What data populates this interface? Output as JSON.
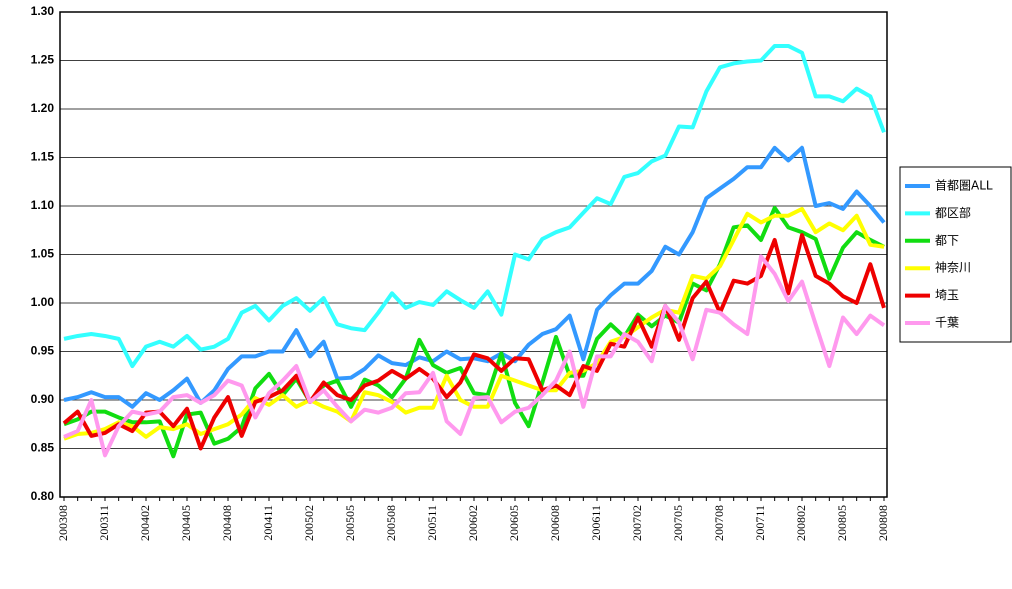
{
  "chart_data": {
    "type": "line",
    "categories": [
      "200308",
      null,
      null,
      "200311",
      null,
      null,
      "200402",
      null,
      null,
      "200405",
      null,
      null,
      "200408",
      null,
      null,
      "200411",
      null,
      null,
      "200502",
      null,
      null,
      "200505",
      null,
      null,
      "200508",
      null,
      null,
      "200511",
      null,
      null,
      "200602",
      null,
      null,
      "200605",
      null,
      null,
      "200608",
      null,
      null,
      "200611",
      null,
      null,
      "200702",
      null,
      null,
      "200705",
      null,
      null,
      "200708",
      null,
      null,
      "200711",
      null,
      null,
      "200802",
      null,
      null,
      "200805",
      null,
      null,
      "200808"
    ],
    "ylim": [
      0.8,
      1.3
    ],
    "yticks": [
      {
        "value": 0.8,
        "label": "0.80"
      },
      {
        "value": 0.85,
        "label": "0.85"
      },
      {
        "value": 0.9,
        "label": "0.90"
      },
      {
        "value": 0.95,
        "label": "0.95"
      },
      {
        "value": 1.0,
        "label": "1.00"
      },
      {
        "value": 1.05,
        "label": "1.05"
      },
      {
        "value": 1.1,
        "label": "1.10"
      },
      {
        "value": 1.15,
        "label": "1.15"
      },
      {
        "value": 1.2,
        "label": "1.20"
      },
      {
        "value": 1.25,
        "label": "1.25"
      },
      {
        "value": 1.3,
        "label": "1.30"
      }
    ],
    "grid": true,
    "legend": "right",
    "series": [
      {
        "name": "首都圏ALL",
        "color": "#3399ff",
        "values": [
          0.9,
          0.903,
          0.908,
          0.903,
          0.903,
          0.893,
          0.907,
          0.9,
          0.91,
          0.922,
          0.897,
          0.91,
          0.932,
          0.945,
          0.945,
          0.95,
          0.95,
          0.972,
          0.945,
          0.96,
          0.922,
          0.923,
          0.932,
          0.946,
          0.938,
          0.936,
          0.944,
          0.94,
          0.95,
          0.942,
          0.943,
          0.94,
          0.948,
          0.94,
          0.957,
          0.968,
          0.973,
          0.987,
          0.942,
          0.993,
          1.008,
          1.02,
          1.02,
          1.033,
          1.058,
          1.05,
          1.073,
          1.108,
          1.118,
          1.128,
          1.14,
          1.14,
          1.16,
          1.147,
          1.16,
          1.1,
          1.103,
          1.097,
          1.115,
          1.1,
          1.083
        ]
      },
      {
        "name": "都区部",
        "color": "#33ffff",
        "values": [
          0.963,
          0.966,
          0.968,
          0.966,
          0.963,
          0.935,
          0.955,
          0.96,
          0.955,
          0.966,
          0.952,
          0.955,
          0.963,
          0.99,
          0.997,
          0.982,
          0.997,
          1.005,
          0.992,
          1.005,
          0.978,
          0.974,
          0.972,
          0.99,
          1.01,
          0.995,
          1.001,
          0.998,
          1.012,
          1.003,
          0.995,
          1.012,
          0.988,
          1.05,
          1.045,
          1.066,
          1.073,
          1.078,
          1.093,
          1.108,
          1.102,
          1.13,
          1.134,
          1.146,
          1.152,
          1.182,
          1.181,
          1.218,
          1.243,
          1.247,
          1.249,
          1.25,
          1.265,
          1.265,
          1.258,
          1.213,
          1.213,
          1.208,
          1.221,
          1.213,
          1.176
        ]
      },
      {
        "name": "都下",
        "color": "#11dd11",
        "values": [
          0.875,
          0.88,
          0.888,
          0.888,
          0.882,
          0.877,
          0.877,
          0.878,
          0.842,
          0.885,
          0.887,
          0.855,
          0.86,
          0.872,
          0.912,
          0.927,
          0.905,
          0.922,
          0.898,
          0.915,
          0.92,
          0.893,
          0.921,
          0.915,
          0.903,
          0.922,
          0.962,
          0.936,
          0.928,
          0.933,
          0.907,
          0.905,
          0.948,
          0.897,
          0.873,
          0.918,
          0.965,
          0.925,
          0.925,
          0.963,
          0.978,
          0.965,
          0.988,
          0.976,
          0.987,
          0.98,
          1.02,
          1.013,
          1.04,
          1.078,
          1.08,
          1.065,
          1.098,
          1.078,
          1.073,
          1.066,
          1.025,
          1.057,
          1.073,
          1.065,
          1.058
        ]
      },
      {
        "name": "神奈川",
        "color": "#ffff00",
        "values": [
          0.86,
          0.865,
          0.866,
          0.87,
          0.877,
          0.873,
          0.862,
          0.872,
          0.87,
          0.875,
          0.865,
          0.87,
          0.875,
          0.885,
          0.902,
          0.895,
          0.905,
          0.893,
          0.9,
          0.893,
          0.888,
          0.878,
          0.908,
          0.905,
          0.898,
          0.887,
          0.892,
          0.892,
          0.925,
          0.9,
          0.893,
          0.893,
          0.925,
          0.92,
          0.915,
          0.91,
          0.91,
          0.928,
          0.93,
          0.938,
          0.96,
          0.965,
          0.975,
          0.985,
          0.993,
          0.99,
          1.028,
          1.025,
          1.038,
          1.065,
          1.092,
          1.083,
          1.09,
          1.09,
          1.097,
          1.073,
          1.082,
          1.075,
          1.09,
          1.06,
          1.058
        ]
      },
      {
        "name": "埼玉",
        "color": "#ee0000",
        "values": [
          0.876,
          0.888,
          0.863,
          0.866,
          0.875,
          0.868,
          0.887,
          0.888,
          0.873,
          0.891,
          0.85,
          0.882,
          0.903,
          0.863,
          0.898,
          0.903,
          0.91,
          0.925,
          0.898,
          0.918,
          0.905,
          0.9,
          0.915,
          0.92,
          0.93,
          0.922,
          0.932,
          0.922,
          0.903,
          0.918,
          0.947,
          0.943,
          0.93,
          0.943,
          0.942,
          0.91,
          0.915,
          0.905,
          0.935,
          0.93,
          0.958,
          0.955,
          0.985,
          0.955,
          0.997,
          0.962,
          1.005,
          1.022,
          0.99,
          1.023,
          1.02,
          1.028,
          1.065,
          1.01,
          1.07,
          1.028,
          1.02,
          1.007,
          1.0,
          1.04,
          0.995
        ]
      },
      {
        "name": "千葉",
        "color": "#ff99ee",
        "values": [
          0.862,
          0.868,
          0.9,
          0.843,
          0.873,
          0.888,
          0.885,
          0.888,
          0.903,
          0.905,
          0.897,
          0.905,
          0.92,
          0.915,
          0.882,
          0.907,
          0.92,
          0.935,
          0.898,
          0.91,
          0.893,
          0.878,
          0.89,
          0.887,
          0.892,
          0.907,
          0.908,
          0.928,
          0.878,
          0.865,
          0.902,
          0.903,
          0.877,
          0.888,
          0.892,
          0.905,
          0.92,
          0.95,
          0.893,
          0.945,
          0.945,
          0.968,
          0.96,
          0.94,
          0.997,
          0.98,
          0.942,
          0.993,
          0.99,
          0.978,
          0.968,
          1.048,
          1.03,
          1.002,
          1.022,
          0.978,
          0.935,
          0.985,
          0.968,
          0.987,
          0.977
        ]
      }
    ]
  }
}
